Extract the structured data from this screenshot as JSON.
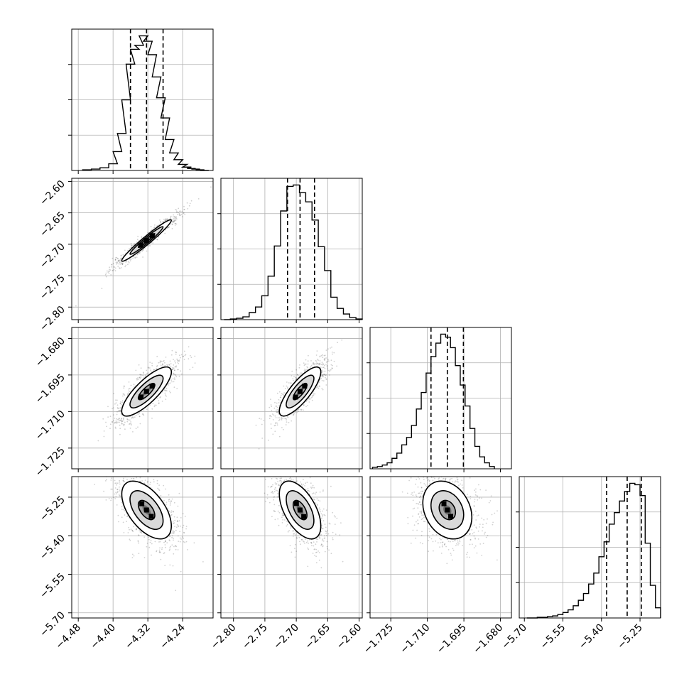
{
  "chart_data": {
    "type": "corner",
    "title": "",
    "grid": true,
    "quantile_lines": "dashed",
    "parameters": [
      {
        "range": [
          -4.495,
          -4.17
        ],
        "ticks": [
          -4.48,
          -4.4,
          -4.32,
          -4.24
        ],
        "tick_labels": [
          "−4.48",
          "−4.40",
          "−4.32",
          "−4.24"
        ],
        "quantiles": [
          -4.36,
          -4.323,
          -4.285
        ]
      },
      {
        "range": [
          -2.82,
          -2.595
        ],
        "ticks": [
          -2.8,
          -2.75,
          -2.7,
          -2.65,
          -2.6
        ],
        "tick_labels": [
          "−2.80",
          "−2.75",
          "−2.70",
          "−2.65",
          "−2.60"
        ],
        "quantiles": [
          -2.714,
          -2.694,
          -2.671
        ]
      },
      {
        "range": [
          -1.7335,
          -1.6755
        ],
        "ticks": [
          -1.725,
          -1.71,
          -1.695,
          -1.68
        ],
        "tick_labels": [
          "−1.725",
          "−1.710",
          "−1.695",
          "−1.680"
        ],
        "quantiles": [
          -1.7085,
          -1.7018,
          -1.6952
        ]
      },
      {
        "range": [
          -5.72,
          -5.17
        ],
        "ticks": [
          -5.7,
          -5.55,
          -5.4,
          -5.25
        ],
        "tick_labels": [
          "−5.70",
          "−5.55",
          "−5.40",
          "−5.25"
        ],
        "quantiles": [
          -5.38,
          -5.3,
          -5.245
        ]
      }
    ],
    "histograms": [
      {
        "x": [
          -4.46,
          -4.44,
          -4.42,
          -4.4,
          -4.39,
          -4.38,
          -4.37,
          -4.36,
          -4.35,
          -4.34,
          -4.33,
          -4.32,
          -4.31,
          -4.3,
          -4.29,
          -4.28,
          -4.27,
          -4.26,
          -4.25,
          -4.24,
          -4.23,
          -4.22,
          -4.21,
          -4.2,
          -4.19
        ],
        "counts": [
          1,
          2,
          4,
          10,
          28,
          55,
          105,
          158,
          180,
          186,
          200,
          192,
          172,
          139,
          108,
          78,
          46,
          26,
          16,
          9,
          5,
          3,
          2,
          1,
          0
        ]
      },
      {
        "x": [
          -2.81,
          -2.8,
          -2.79,
          -2.78,
          -2.77,
          -2.76,
          -2.75,
          -2.74,
          -2.73,
          -2.72,
          -2.71,
          -2.7,
          -2.69,
          -2.68,
          -2.67,
          -2.66,
          -2.65,
          -2.64,
          -2.63,
          -2.62,
          -2.61,
          -2.6
        ],
        "counts": [
          0,
          1,
          2,
          4,
          10,
          18,
          34,
          62,
          105,
          155,
          190,
          192,
          181,
          168,
          142,
          104,
          70,
          32,
          16,
          8,
          3,
          1
        ]
      },
      {
        "x": [
          -1.7315,
          -1.7295,
          -1.7275,
          -1.7255,
          -1.7235,
          -1.7215,
          -1.7195,
          -1.7175,
          -1.7155,
          -1.7135,
          -1.7115,
          -1.7095,
          -1.7075,
          -1.7055,
          -1.7035,
          -1.7015,
          -1.6995,
          -1.6975,
          -1.6955,
          -1.6935,
          -1.6915,
          -1.6895,
          -1.6875,
          -1.6855,
          -1.6835
        ],
        "counts": [
          2,
          3,
          5,
          8,
          14,
          21,
          32,
          42,
          58,
          80,
          102,
          128,
          150,
          168,
          180,
          176,
          162,
          138,
          112,
          84,
          54,
          30,
          16,
          8,
          3
        ]
      },
      {
        "x": [
          -5.68,
          -5.66,
          -5.64,
          -5.62,
          -5.6,
          -5.58,
          -5.56,
          -5.54,
          -5.52,
          -5.5,
          -5.48,
          -5.46,
          -5.44,
          -5.42,
          -5.4,
          -5.38,
          -5.36,
          -5.34,
          -5.32,
          -5.3,
          -5.28,
          -5.26,
          -5.24,
          -5.22,
          -5.2,
          -5.18
        ],
        "counts": [
          0,
          0,
          1,
          1,
          2,
          3,
          5,
          8,
          12,
          18,
          26,
          36,
          50,
          66,
          90,
          112,
          138,
          155,
          172,
          186,
          198,
          196,
          180,
          110,
          48,
          15
        ]
      }
    ],
    "pairs": [
      {
        "x_param": 0,
        "y_param": 1,
        "correlation": 0.97,
        "center": [
          -4.323,
          -2.694
        ],
        "sd": [
          0.038,
          0.022
        ],
        "levels": [
          0.5,
          1.0,
          1.5
        ]
      },
      {
        "x_param": 0,
        "y_param": 2,
        "correlation": 0.8,
        "center": [
          -4.323,
          -1.7018
        ],
        "sd": [
          0.038,
          0.0067
        ],
        "levels": [
          0.5,
          1.0,
          1.5
        ]
      },
      {
        "x_param": 1,
        "y_param": 2,
        "correlation": 0.8,
        "center": [
          -2.694,
          -1.7018
        ],
        "sd": [
          0.022,
          0.0067
        ],
        "levels": [
          0.5,
          1.0,
          1.5
        ]
      },
      {
        "x_param": 0,
        "y_param": 3,
        "correlation": -0.55,
        "center": [
          -4.323,
          -5.3
        ],
        "sd": [
          0.038,
          0.075
        ],
        "levels": [
          0.5,
          1.0,
          1.5
        ]
      },
      {
        "x_param": 1,
        "y_param": 3,
        "correlation": -0.55,
        "center": [
          -2.694,
          -5.3
        ],
        "sd": [
          0.022,
          0.075
        ],
        "levels": [
          0.5,
          1.0,
          1.5
        ]
      },
      {
        "x_param": 2,
        "y_param": 3,
        "correlation": -0.25,
        "center": [
          -1.7018,
          -5.3
        ],
        "sd": [
          0.0067,
          0.075
        ],
        "levels": [
          0.5,
          1.0,
          1.5
        ]
      }
    ]
  }
}
